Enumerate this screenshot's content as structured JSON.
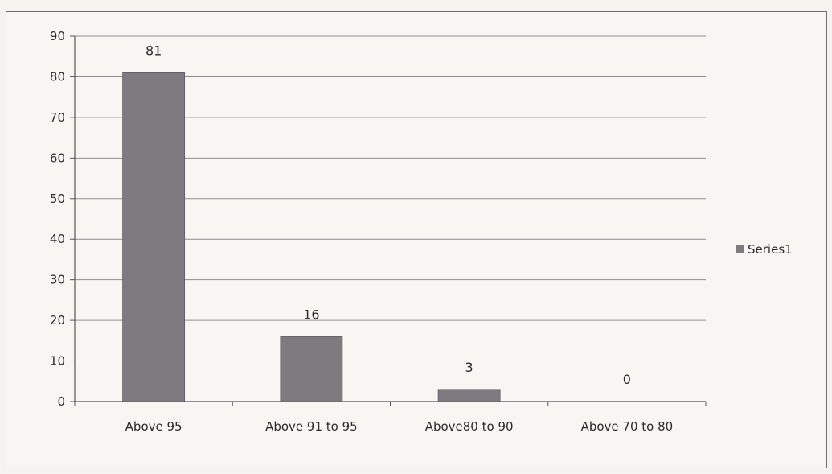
{
  "chart_data": {
    "type": "bar",
    "title": "",
    "xlabel": "",
    "ylabel": "",
    "categories": [
      "Above 95",
      "Above 91 to 95",
      "Above80 to 90",
      "Above 70 to 80"
    ],
    "series": [
      {
        "name": "Series1",
        "values": [
          81,
          16,
          3,
          0
        ],
        "color": "#7d7b80"
      }
    ],
    "data_labels": [
      "81",
      "16",
      "3",
      "0"
    ],
    "ylim": [
      0,
      90
    ],
    "yticks": [
      0,
      10,
      20,
      30,
      40,
      50,
      60,
      70,
      80,
      90
    ],
    "ytick_labels": [
      "0",
      "10",
      "20",
      "30",
      "40",
      "50",
      "60",
      "70",
      "80",
      "90"
    ],
    "grid": true,
    "legend_position": "right"
  }
}
